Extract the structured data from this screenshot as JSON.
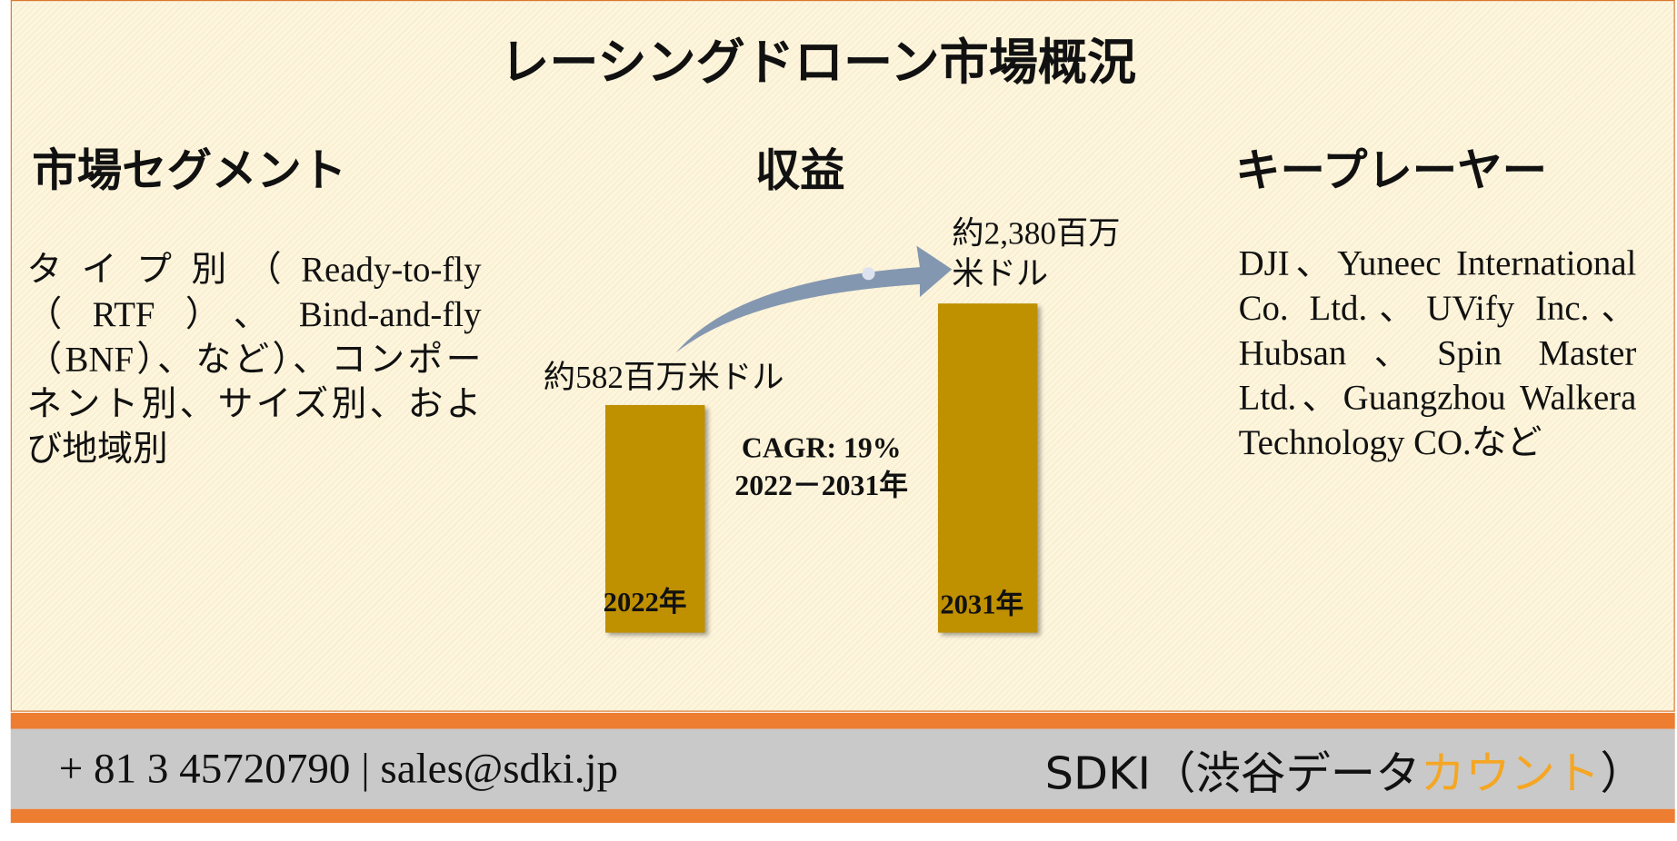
{
  "title": "レーシングドローン市場概況",
  "sections": [
    {
      "heading": "市場セグメント",
      "body": "タイプ別（Ready-to-fly（RTF）、Bind-and-fly（BNF）、など）、コンポーネント別、サイズ別、および地域別"
    },
    {
      "heading": "収益"
    },
    {
      "heading": "キープレーヤー",
      "body": "DJI、Yuneec International Co. Ltd.、UVify Inc.、Hubsan、Spin Master Ltd.、Guangzhou Walkera Technology CO.など"
    }
  ],
  "revenue": {
    "start_label": "約582百万米ドル",
    "end_label": "約2,380百万米ドル",
    "start_year": "2022年",
    "end_year": "2031年",
    "cagr": "CAGR: 19%",
    "period": "2022－2031年"
  },
  "footer": {
    "contact": "+ 81 3 45720790 | sales@sdki.jp",
    "brand": "SDKI（渋谷データ",
    "brand_highlight": "カウント",
    "brand_end": "）"
  }
}
